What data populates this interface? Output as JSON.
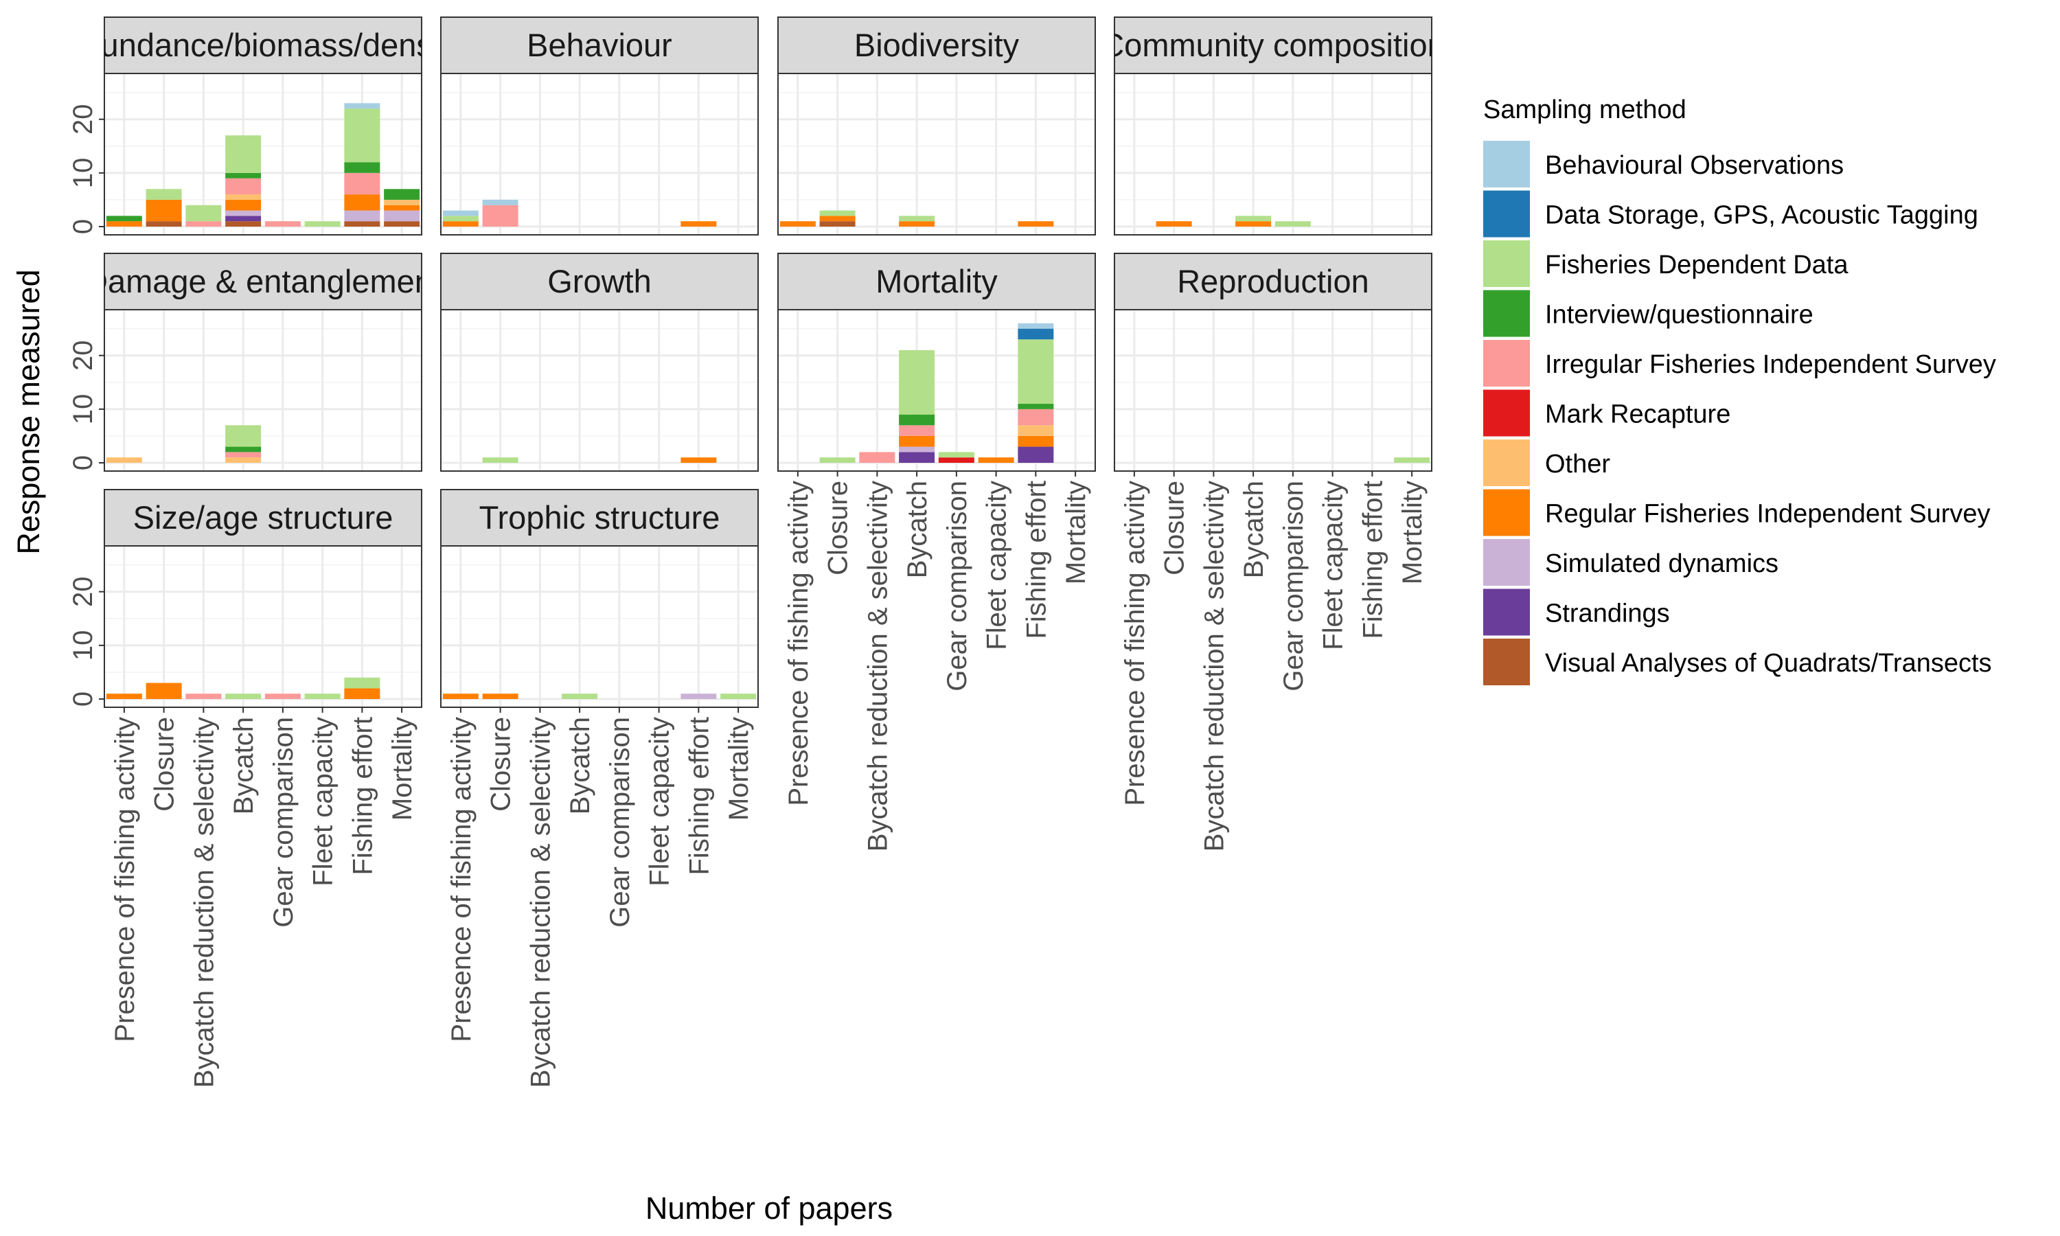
{
  "chart_data": {
    "type": "bar",
    "stacked": true,
    "facet_wrap": true,
    "xlabel": "Number of papers",
    "ylabel": "Response measured",
    "ylim": [
      0,
      27
    ],
    "yticks": [
      0,
      10,
      20
    ],
    "grid": true,
    "legend_title": "Sampling method",
    "legend_position": "right",
    "categories": [
      "Presence of fishing activity",
      "Closure",
      "Bycatch reduction & selectivity",
      "Bycatch",
      "Gear comparison",
      "Fleet capacity",
      "Fishing effort",
      "Mortality"
    ],
    "series": [
      {
        "name": "Behavioural Observations",
        "color": "#a6cee3"
      },
      {
        "name": "Data Storage, GPS, Acoustic Tagging",
        "color": "#1f78b4"
      },
      {
        "name": "Fisheries Dependent Data",
        "color": "#b2df8a"
      },
      {
        "name": "Interview/questionnaire",
        "color": "#33a02c"
      },
      {
        "name": "Irregular Fisheries Independent Survey",
        "color": "#fb9a99"
      },
      {
        "name": "Mark Recapture",
        "color": "#e31a1c"
      },
      {
        "name": "Other",
        "color": "#fdbf6f"
      },
      {
        "name": "Regular Fisheries Independent Survey",
        "color": "#ff7f00"
      },
      {
        "name": "Simulated dynamics",
        "color": "#cab2d6"
      },
      {
        "name": "Strandings",
        "color": "#6a3d9a"
      },
      {
        "name": "Visual Analyses of Quadrats/Transects",
        "color": "#b15928"
      }
    ],
    "panels": [
      {
        "title": "Abundance/biomass/density",
        "bars": [
          {
            "category": "Presence of fishing activity",
            "segments": {
              "Regular Fisheries Independent Survey": 1,
              "Interview/questionnaire": 1
            }
          },
          {
            "category": "Closure",
            "segments": {
              "Visual Analyses of Quadrats/Transects": 1,
              "Regular Fisheries Independent Survey": 4,
              "Fisheries Dependent Data": 2
            }
          },
          {
            "category": "Bycatch reduction & selectivity",
            "segments": {
              "Irregular Fisheries Independent Survey": 1,
              "Fisheries Dependent Data": 3
            }
          },
          {
            "category": "Bycatch",
            "segments": {
              "Visual Analyses of Quadrats/Transects": 1,
              "Strandings": 1,
              "Simulated dynamics": 1,
              "Regular Fisheries Independent Survey": 2,
              "Other": 1,
              "Irregular Fisheries Independent Survey": 3,
              "Interview/questionnaire": 1,
              "Fisheries Dependent Data": 7
            }
          },
          {
            "category": "Gear comparison",
            "segments": {
              "Irregular Fisheries Independent Survey": 1
            }
          },
          {
            "category": "Fleet capacity",
            "segments": {
              "Fisheries Dependent Data": 1
            }
          },
          {
            "category": "Fishing effort",
            "segments": {
              "Visual Analyses of Quadrats/Transects": 1,
              "Simulated dynamics": 2,
              "Regular Fisheries Independent Survey": 3,
              "Irregular Fisheries Independent Survey": 4,
              "Interview/questionnaire": 2,
              "Fisheries Dependent Data": 10,
              "Behavioural Observations": 1
            }
          },
          {
            "category": "Mortality",
            "segments": {
              "Visual Analyses of Quadrats/Transects": 1,
              "Simulated dynamics": 2,
              "Regular Fisheries Independent Survey": 1,
              "Other": 1,
              "Interview/questionnaire": 2
            }
          }
        ]
      },
      {
        "title": "Behaviour",
        "bars": [
          {
            "category": "Presence of fishing activity",
            "segments": {
              "Regular Fisheries Independent Survey": 1,
              "Fisheries Dependent Data": 1,
              "Behavioural Observations": 1
            }
          },
          {
            "category": "Closure",
            "segments": {
              "Irregular Fisheries Independent Survey": 4,
              "Behavioural Observations": 1
            }
          },
          {
            "category": "Fishing effort",
            "segments": {
              "Regular Fisheries Independent Survey": 1
            }
          }
        ]
      },
      {
        "title": "Biodiversity",
        "bars": [
          {
            "category": "Presence of fishing activity",
            "segments": {
              "Regular Fisheries Independent Survey": 1
            }
          },
          {
            "category": "Closure",
            "segments": {
              "Visual Analyses of Quadrats/Transects": 1,
              "Regular Fisheries Independent Survey": 1,
              "Fisheries Dependent Data": 1
            }
          },
          {
            "category": "Bycatch",
            "segments": {
              "Regular Fisheries Independent Survey": 1,
              "Fisheries Dependent Data": 1
            }
          },
          {
            "category": "Fishing effort",
            "segments": {
              "Regular Fisheries Independent Survey": 1
            }
          }
        ]
      },
      {
        "title": "Community composition",
        "bars": [
          {
            "category": "Closure",
            "segments": {
              "Regular Fisheries Independent Survey": 1
            }
          },
          {
            "category": "Bycatch",
            "segments": {
              "Regular Fisheries Independent Survey": 1,
              "Fisheries Dependent Data": 1
            }
          },
          {
            "category": "Gear comparison",
            "segments": {
              "Fisheries Dependent Data": 1
            }
          }
        ]
      },
      {
        "title": "Damage & entanglement",
        "bars": [
          {
            "category": "Presence of fishing activity",
            "segments": {
              "Other": 1
            }
          },
          {
            "category": "Bycatch",
            "segments": {
              "Other": 1,
              "Irregular Fisheries Independent Survey": 1,
              "Interview/questionnaire": 1,
              "Fisheries Dependent Data": 4
            }
          }
        ]
      },
      {
        "title": "Growth",
        "bars": [
          {
            "category": "Closure",
            "segments": {
              "Fisheries Dependent Data": 1
            }
          },
          {
            "category": "Fishing effort",
            "segments": {
              "Regular Fisheries Independent Survey": 1
            }
          }
        ]
      },
      {
        "title": "Mortality",
        "bars": [
          {
            "category": "Closure",
            "segments": {
              "Fisheries Dependent Data": 1
            }
          },
          {
            "category": "Bycatch reduction & selectivity",
            "segments": {
              "Irregular Fisheries Independent Survey": 2
            }
          },
          {
            "category": "Bycatch",
            "segments": {
              "Strandings": 2,
              "Simulated dynamics": 1,
              "Regular Fisheries Independent Survey": 2,
              "Irregular Fisheries Independent Survey": 2,
              "Interview/questionnaire": 2,
              "Fisheries Dependent Data": 12
            }
          },
          {
            "category": "Gear comparison",
            "segments": {
              "Mark Recapture": 1,
              "Fisheries Dependent Data": 1
            }
          },
          {
            "category": "Fleet capacity",
            "segments": {
              "Regular Fisheries Independent Survey": 1
            }
          },
          {
            "category": "Fishing effort",
            "segments": {
              "Strandings": 3,
              "Regular Fisheries Independent Survey": 2,
              "Other": 2,
              "Irregular Fisheries Independent Survey": 3,
              "Interview/questionnaire": 1,
              "Fisheries Dependent Data": 12,
              "Data Storage, GPS, Acoustic Tagging": 2,
              "Behavioural Observations": 1
            }
          }
        ]
      },
      {
        "title": "Reproduction",
        "bars": [
          {
            "category": "Mortality",
            "segments": {
              "Fisheries Dependent Data": 1
            }
          }
        ]
      },
      {
        "title": "Size/age structure",
        "bars": [
          {
            "category": "Presence of fishing activity",
            "segments": {
              "Regular Fisheries Independent Survey": 1
            }
          },
          {
            "category": "Closure",
            "segments": {
              "Regular Fisheries Independent Survey": 3
            }
          },
          {
            "category": "Bycatch reduction & selectivity",
            "segments": {
              "Irregular Fisheries Independent Survey": 1
            }
          },
          {
            "category": "Bycatch",
            "segments": {
              "Fisheries Dependent Data": 1
            }
          },
          {
            "category": "Gear comparison",
            "segments": {
              "Irregular Fisheries Independent Survey": 1
            }
          },
          {
            "category": "Fleet capacity",
            "segments": {
              "Fisheries Dependent Data": 1
            }
          },
          {
            "category": "Fishing effort",
            "segments": {
              "Regular Fisheries Independent Survey": 2,
              "Fisheries Dependent Data": 2
            }
          }
        ]
      },
      {
        "title": "Trophic structure",
        "bars": [
          {
            "category": "Presence of fishing activity",
            "segments": {
              "Regular Fisheries Independent Survey": 1
            }
          },
          {
            "category": "Closure",
            "segments": {
              "Regular Fisheries Independent Survey": 1
            }
          },
          {
            "category": "Bycatch",
            "segments": {
              "Fisheries Dependent Data": 1
            }
          },
          {
            "category": "Fishing effort",
            "segments": {
              "Simulated dynamics": 1
            }
          },
          {
            "category": "Mortality",
            "segments": {
              "Fisheries Dependent Data": 1
            }
          }
        ]
      }
    ]
  }
}
